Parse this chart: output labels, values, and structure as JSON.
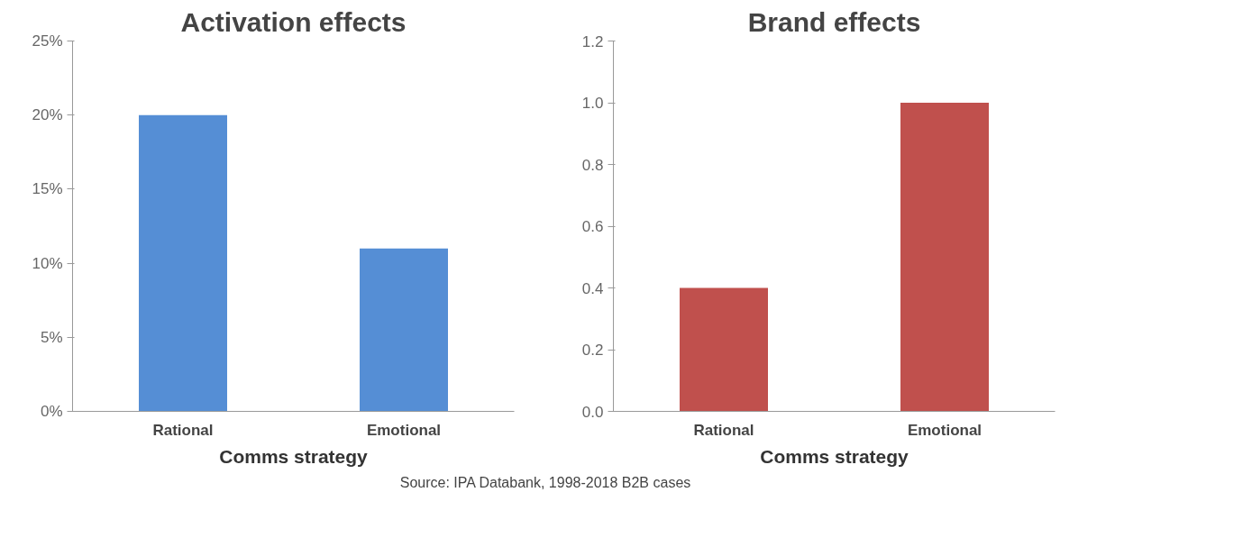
{
  "chart_data": [
    {
      "type": "bar",
      "title": "Activation effects",
      "xlabel": "Comms strategy",
      "categories": [
        "Rational",
        "Emotional"
      ],
      "values": [
        20,
        11
      ],
      "color": "#558ed5",
      "ylim": [
        0,
        25
      ],
      "yticks": [
        {
          "value": 0,
          "label": "0%"
        },
        {
          "value": 5,
          "label": "5%"
        },
        {
          "value": 10,
          "label": "10%"
        },
        {
          "value": 15,
          "label": "15%"
        },
        {
          "value": 20,
          "label": "20%"
        },
        {
          "value": 25,
          "label": "25%"
        }
      ],
      "grid": false
    },
    {
      "type": "bar",
      "title": "Brand effects",
      "xlabel": "Comms strategy",
      "categories": [
        "Rational",
        "Emotional"
      ],
      "values": [
        0.4,
        1.0
      ],
      "color": "#c0504d",
      "ylim": [
        0,
        1.2
      ],
      "yticks": [
        {
          "value": 0,
          "label": "0.0"
        },
        {
          "value": 0.2,
          "label": "0.2"
        },
        {
          "value": 0.4,
          "label": "0.4"
        },
        {
          "value": 0.6,
          "label": "0.6"
        },
        {
          "value": 0.8,
          "label": "0.8"
        },
        {
          "value": 1.0,
          "label": "1.0"
        },
        {
          "value": 1.2,
          "label": "1.2"
        }
      ],
      "grid": false,
      "annotations": [
        "Source: IPA Databank, 1998-2018 B2B cases"
      ]
    }
  ]
}
